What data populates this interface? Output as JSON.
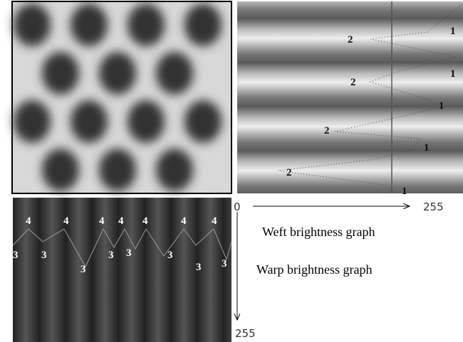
{
  "weft_panel": {
    "peak_labels": [
      "2",
      "1",
      "2",
      "1",
      "1",
      "2",
      "1",
      "2",
      "1"
    ]
  },
  "warp_panel": {
    "peak_labels": [
      "4",
      "4",
      "4",
      "4",
      "4",
      "4",
      "4",
      "3",
      "3",
      "3",
      "3",
      "3",
      "3",
      "3",
      "3"
    ]
  },
  "axes": {
    "origin": "0",
    "weft_max": "255",
    "warp_max": "255"
  },
  "captions": {
    "weft": "Weft brightness graph",
    "warp": "Warp brightness graph"
  }
}
